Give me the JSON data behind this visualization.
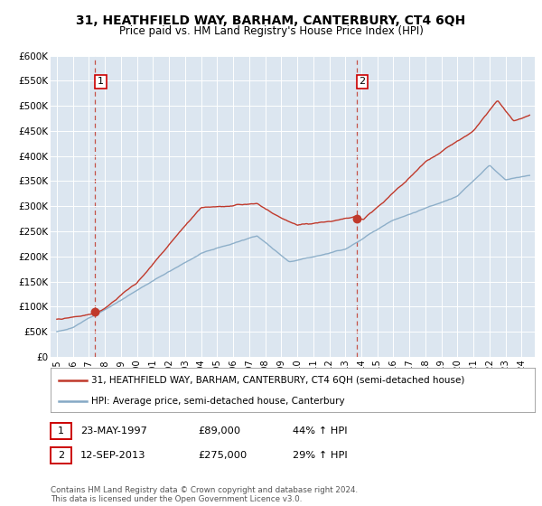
{
  "title": "31, HEATHFIELD WAY, BARHAM, CANTERBURY, CT4 6QH",
  "subtitle": "Price paid vs. HM Land Registry's House Price Index (HPI)",
  "legend_line1": "31, HEATHFIELD WAY, BARHAM, CANTERBURY, CT4 6QH (semi-detached house)",
  "legend_line2": "HPI: Average price, semi-detached house, Canterbury",
  "annotation1_label": "1",
  "annotation1_date": "23-MAY-1997",
  "annotation1_price": "£89,000",
  "annotation1_hpi": "44% ↑ HPI",
  "annotation2_label": "2",
  "annotation2_date": "12-SEP-2013",
  "annotation2_price": "£275,000",
  "annotation2_hpi": "29% ↑ HPI",
  "footer": "Contains HM Land Registry data © Crown copyright and database right 2024.\nThis data is licensed under the Open Government Licence v3.0.",
  "line_color_red": "#c0392b",
  "line_color_blue": "#85a9c5",
  "dashed_color": "#c0392b",
  "background_color": "#dce6f0",
  "ylim": [
    0,
    600000
  ],
  "yticks": [
    0,
    50000,
    100000,
    150000,
    200000,
    250000,
    300000,
    350000,
    400000,
    450000,
    500000,
    550000,
    600000
  ],
  "ytick_labels": [
    "£0",
    "£50K",
    "£100K",
    "£150K",
    "£200K",
    "£250K",
    "£300K",
    "£350K",
    "£400K",
    "£450K",
    "£500K",
    "£550K",
    "£600K"
  ],
  "purchase1_year": 1997.38,
  "purchase1_price": 89000,
  "purchase2_year": 2013.7,
  "purchase2_price": 275000,
  "xlim_left": 1994.6,
  "xlim_right": 2024.8
}
